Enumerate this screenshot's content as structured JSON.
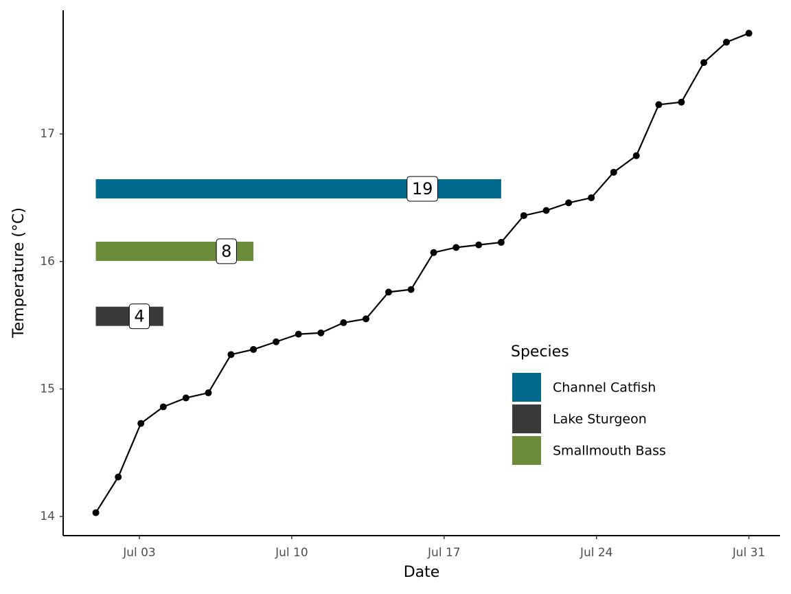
{
  "chart_data": {
    "type": "line",
    "x_label": "Date",
    "y_label": "Temperature (°C)",
    "x": [
      1,
      2.03,
      3.07,
      4.1,
      5.14,
      6.17,
      7.21,
      8.24,
      9.28,
      10.31,
      11.34,
      12.38,
      13.41,
      14.45,
      15.48,
      16.52,
      17.55,
      18.59,
      19.62,
      20.66,
      21.69,
      22.72,
      23.76,
      24.79,
      25.83,
      26.86,
      27.9,
      28.93,
      29.97,
      31
    ],
    "values": [
      14.03,
      14.31,
      14.73,
      14.86,
      14.93,
      14.97,
      15.27,
      15.31,
      15.37,
      15.43,
      15.44,
      15.52,
      15.55,
      15.76,
      15.78,
      16.07,
      16.11,
      16.13,
      16.15,
      16.36,
      16.4,
      16.46,
      16.5,
      16.7,
      16.83,
      17.23,
      17.25,
      17.56,
      17.72,
      17.79
    ],
    "color": "#000000",
    "ranges": [
      {
        "name": "Channel Catfish",
        "color": "#00698c",
        "start": 1,
        "end": 19.62,
        "y": 16.57,
        "count": 19,
        "count_x": 16
      },
      {
        "name": "Lake Sturgeon",
        "color": "#3a3a3a",
        "start": 1,
        "end": 4.1,
        "y": 15.57,
        "count": 4,
        "count_x": 3
      },
      {
        "name": "Smallmouth Bass",
        "color": "#6b8a3a",
        "start": 1,
        "end": 8.24,
        "y": 16.08,
        "count": 8,
        "count_x": 7
      }
    ],
    "legend_title": "Species",
    "xlim": [
      -0.5,
      32.43
    ],
    "ylim": [
      13.85,
      17.97
    ],
    "xticks": [
      {
        "value": 3,
        "label": "Jul 03"
      },
      {
        "value": 10,
        "label": "Jul 10"
      },
      {
        "value": 17,
        "label": "Jul 17"
      },
      {
        "value": 24,
        "label": "Jul 24"
      },
      {
        "value": 31,
        "label": "Jul 31"
      }
    ],
    "yticks": [
      14,
      15,
      16,
      17
    ]
  }
}
